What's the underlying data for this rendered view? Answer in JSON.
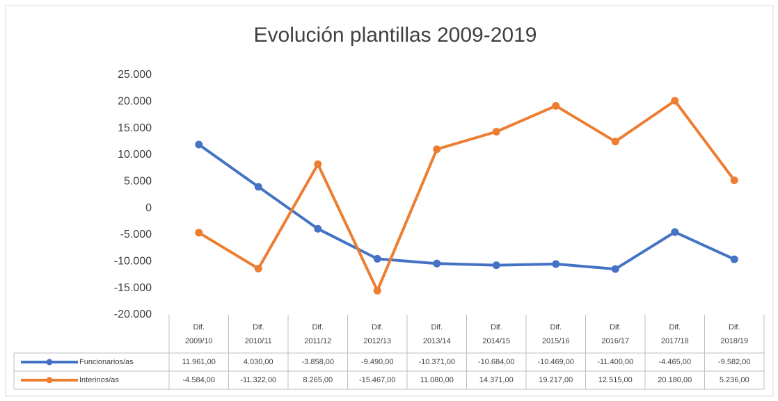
{
  "chart_data": {
    "type": "line",
    "title": "Evolución plantillas 2009-2019",
    "categories": [
      "Dif. 2009/10",
      "Dif. 2010/11",
      "Dif. 2011/12",
      "Dif. 2012/13",
      "Dif. 2013/14",
      "Dif. 2014/15",
      "Dif. 2015/16",
      "Dif. 2016/17",
      "Dif. 2017/18",
      "Dif. 2018/19"
    ],
    "series": [
      {
        "name": "Funcionarios/as",
        "color": "#4472c4",
        "values": [
          11961,
          4030,
          -3858,
          -9490,
          -10371,
          -10684,
          -10469,
          -11400,
          -4465,
          -9582
        ],
        "value_labels": [
          "11.961,00",
          "4.030,00",
          "-3.858,00",
          "-9.490,00",
          "-10.371,00",
          "-10.684,00",
          "-10.469,00",
          "-11.400,00",
          "-4.465,00",
          "-9.582,00"
        ]
      },
      {
        "name": "Interinos/as",
        "color": "#ed7d31",
        "values": [
          -4584,
          -11322,
          8265,
          -15467,
          11080,
          14371,
          19217,
          12515,
          20180,
          5236
        ],
        "value_labels": [
          "-4.584,00",
          "-11.322,00",
          "8.265,00",
          "-15.467,00",
          "11.080,00",
          "14.371,00",
          "19.217,00",
          "12.515,00",
          "20.180,00",
          "5.236,00"
        ]
      }
    ],
    "ylim": [
      -20000,
      25000
    ],
    "yticks": [
      {
        "value": -20000,
        "label": "-20.000"
      },
      {
        "value": -15000,
        "label": "-15.000"
      },
      {
        "value": -10000,
        "label": "-10.000"
      },
      {
        "value": -5000,
        "label": "-5.000"
      },
      0,
      {
        "value": 5000,
        "label": "5.000"
      },
      {
        "value": 10000,
        "label": "10.000"
      },
      {
        "value": 15000,
        "label": "15.000"
      },
      {
        "value": 20000,
        "label": "20.000"
      },
      {
        "value": 25000,
        "label": "25.000"
      }
    ],
    "grid": false
  }
}
